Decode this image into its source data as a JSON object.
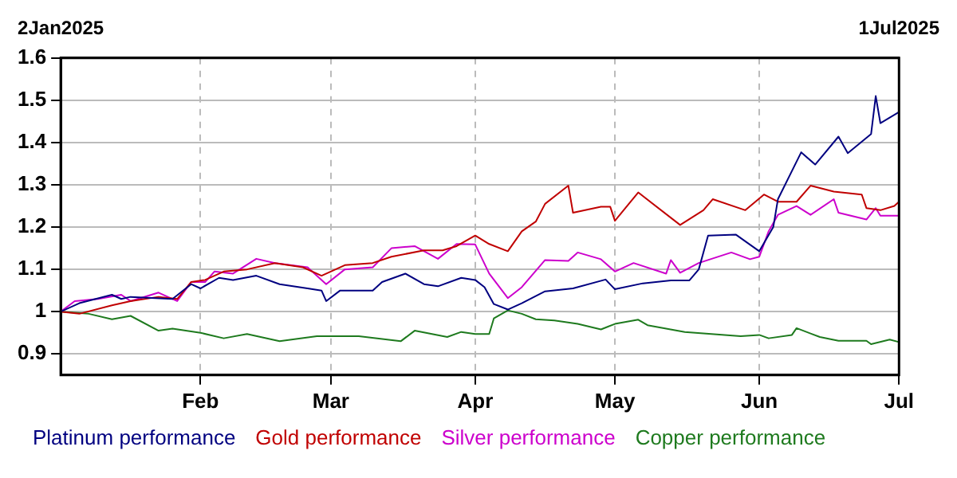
{
  "chart_data": {
    "type": "line",
    "grid": true,
    "legend": "bottom",
    "marker": "none",
    "line_style": "solid",
    "xlim": [
      "2025-01-02",
      "2025-07-01"
    ],
    "xticks": [
      {
        "value": "2025-02-01",
        "label": "Feb"
      },
      {
        "value": "2025-03-01",
        "label": "Mar"
      },
      {
        "value": "2025-04-01",
        "label": "Apr"
      },
      {
        "value": "2025-05-01",
        "label": "May"
      },
      {
        "value": "2025-06-01",
        "label": "Jun"
      },
      {
        "value": "2025-07-01",
        "label": "Jul"
      }
    ],
    "x2lim": [
      "2025-01-02",
      "2025-07-01"
    ],
    "x2ticks": [
      {
        "value": "2025-01-02",
        "label": "2Jan2025"
      },
      {
        "value": "2025-07-01",
        "label": "1Jul2025"
      }
    ],
    "ylim": [
      0.85,
      1.6
    ],
    "yticks": [
      0.9,
      1,
      1.1,
      1.2,
      1.3,
      1.4,
      1.5,
      1.6
    ],
    "series": [
      {
        "name": "Platinum performance",
        "color": "#000080",
        "x": [
          "2025-01-02",
          "2025-01-06",
          "2025-01-13",
          "2025-01-15",
          "2025-01-17",
          "2025-01-26",
          "2025-01-30",
          "2025-02-01",
          "2025-02-05",
          "2025-02-08",
          "2025-02-13",
          "2025-02-18",
          "2025-02-24",
          "2025-02-27",
          "2025-02-28",
          "2025-03-03",
          "2025-03-10",
          "2025-03-12",
          "2025-03-17",
          "2025-03-21",
          "2025-03-24",
          "2025-03-29",
          "2025-04-01",
          "2025-04-03",
          "2025-04-05",
          "2025-04-08",
          "2025-04-11",
          "2025-04-16",
          "2025-04-22",
          "2025-04-29",
          "2025-05-01",
          "2025-05-07",
          "2025-05-13",
          "2025-05-17",
          "2025-05-19",
          "2025-05-21",
          "2025-05-27",
          "2025-06-01",
          "2025-06-04",
          "2025-06-05",
          "2025-06-10",
          "2025-06-13",
          "2025-06-18",
          "2025-06-20",
          "2025-06-25",
          "2025-06-26",
          "2025-06-27",
          "2025-07-01"
        ],
        "values": [
          1.0,
          1.02,
          1.04,
          1.03,
          1.035,
          1.03,
          1.065,
          1.055,
          1.08,
          1.075,
          1.085,
          1.065,
          1.055,
          1.05,
          1.025,
          1.05,
          1.05,
          1.07,
          1.09,
          1.065,
          1.06,
          1.08,
          1.075,
          1.058,
          1.018,
          1.005,
          1.02,
          1.048,
          1.055,
          1.076,
          1.053,
          1.067,
          1.074,
          1.074,
          1.1,
          1.18,
          1.182,
          1.143,
          1.2,
          1.266,
          1.377,
          1.348,
          1.414,
          1.375,
          1.42,
          1.51,
          1.446,
          1.472
        ]
      },
      {
        "name": "Gold performance",
        "color": "#c00000",
        "x": [
          "2025-01-02",
          "2025-01-06",
          "2025-01-13",
          "2025-01-17",
          "2025-01-23",
          "2025-01-27",
          "2025-01-30",
          "2025-02-02",
          "2025-02-06",
          "2025-02-11",
          "2025-02-17",
          "2025-02-23",
          "2025-02-27",
          "2025-03-04",
          "2025-03-10",
          "2025-03-14",
          "2025-03-21",
          "2025-03-25",
          "2025-03-28",
          "2025-04-01",
          "2025-04-04",
          "2025-04-08",
          "2025-04-11",
          "2025-04-14",
          "2025-04-16",
          "2025-04-21",
          "2025-04-22",
          "2025-04-28",
          "2025-04-30",
          "2025-05-01",
          "2025-05-06",
          "2025-05-15",
          "2025-05-20",
          "2025-05-22",
          "2025-05-29",
          "2025-06-02",
          "2025-06-05",
          "2025-06-09",
          "2025-06-12",
          "2025-06-17",
          "2025-06-23",
          "2025-06-24",
          "2025-06-27",
          "2025-06-30",
          "2025-07-01"
        ],
        "values": [
          1.0,
          0.995,
          1.015,
          1.025,
          1.035,
          1.03,
          1.07,
          1.075,
          1.095,
          1.1,
          1.115,
          1.105,
          1.085,
          1.11,
          1.115,
          1.13,
          1.145,
          1.145,
          1.155,
          1.18,
          1.16,
          1.143,
          1.19,
          1.213,
          1.255,
          1.298,
          1.234,
          1.248,
          1.248,
          1.215,
          1.282,
          1.205,
          1.24,
          1.266,
          1.24,
          1.277,
          1.26,
          1.26,
          1.298,
          1.284,
          1.277,
          1.245,
          1.24,
          1.25,
          1.26
        ]
      },
      {
        "name": "Silver performance",
        "color": "#cc00cc",
        "x": [
          "2025-01-02",
          "2025-01-05",
          "2025-01-10",
          "2025-01-15",
          "2025-01-17",
          "2025-01-23",
          "2025-01-27",
          "2025-01-30",
          "2025-02-02",
          "2025-02-04",
          "2025-02-08",
          "2025-02-13",
          "2025-02-17",
          "2025-02-24",
          "2025-02-28",
          "2025-03-04",
          "2025-03-10",
          "2025-03-14",
          "2025-03-19",
          "2025-03-24",
          "2025-03-28",
          "2025-04-01",
          "2025-04-04",
          "2025-04-08",
          "2025-04-11",
          "2025-04-16",
          "2025-04-21",
          "2025-04-23",
          "2025-04-28",
          "2025-05-01",
          "2025-05-05",
          "2025-05-12",
          "2025-05-13",
          "2025-05-15",
          "2025-05-19",
          "2025-05-26",
          "2025-05-30",
          "2025-06-01",
          "2025-06-03",
          "2025-06-05",
          "2025-06-09",
          "2025-06-12",
          "2025-06-17",
          "2025-06-18",
          "2025-06-24",
          "2025-06-26",
          "2025-06-27",
          "2025-07-01"
        ],
        "values": [
          1.0,
          1.025,
          1.03,
          1.04,
          1.025,
          1.045,
          1.025,
          1.07,
          1.07,
          1.095,
          1.09,
          1.125,
          1.115,
          1.105,
          1.065,
          1.1,
          1.105,
          1.15,
          1.155,
          1.125,
          1.16,
          1.159,
          1.09,
          1.032,
          1.058,
          1.122,
          1.12,
          1.14,
          1.124,
          1.095,
          1.115,
          1.09,
          1.122,
          1.092,
          1.115,
          1.14,
          1.124,
          1.13,
          1.19,
          1.229,
          1.25,
          1.229,
          1.266,
          1.234,
          1.218,
          1.245,
          1.227,
          1.227
        ]
      },
      {
        "name": "Copper performance",
        "color": "#1e7a1e",
        "x": [
          "2025-01-02",
          "2025-01-08",
          "2025-01-13",
          "2025-01-17",
          "2025-01-23",
          "2025-01-26",
          "2025-02-01",
          "2025-02-06",
          "2025-02-11",
          "2025-02-18",
          "2025-02-26",
          "2025-03-07",
          "2025-03-16",
          "2025-03-19",
          "2025-03-26",
          "2025-03-29",
          "2025-04-01",
          "2025-04-04",
          "2025-04-05",
          "2025-04-08",
          "2025-04-11",
          "2025-04-14",
          "2025-04-18",
          "2025-04-23",
          "2025-04-28",
          "2025-05-01",
          "2025-05-06",
          "2025-05-08",
          "2025-05-16",
          "2025-05-28",
          "2025-06-01",
          "2025-06-03",
          "2025-06-08",
          "2025-06-09",
          "2025-06-14",
          "2025-06-18",
          "2025-06-24",
          "2025-06-25",
          "2025-06-29",
          "2025-07-01"
        ],
        "values": [
          1.0,
          0.995,
          0.982,
          0.99,
          0.955,
          0.96,
          0.95,
          0.937,
          0.947,
          0.93,
          0.942,
          0.942,
          0.93,
          0.955,
          0.94,
          0.952,
          0.947,
          0.947,
          0.984,
          1.003,
          0.995,
          0.982,
          0.979,
          0.971,
          0.958,
          0.971,
          0.981,
          0.968,
          0.952,
          0.942,
          0.945,
          0.937,
          0.945,
          0.961,
          0.94,
          0.931,
          0.931,
          0.923,
          0.934,
          0.928
        ]
      }
    ]
  }
}
